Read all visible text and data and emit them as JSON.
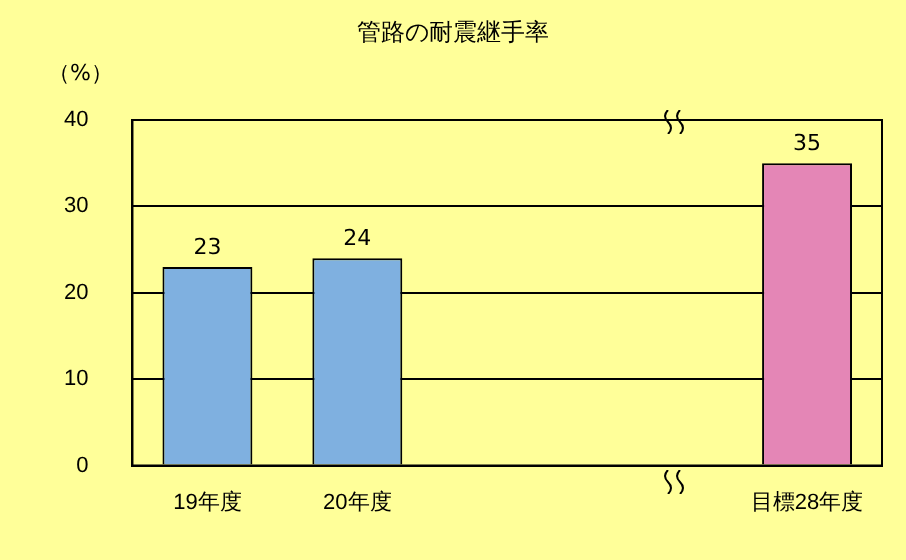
{
  "chart_data": {
    "type": "bar",
    "title": "管路の耐震継手率",
    "ylabel": "（%）",
    "categories": [
      "19年度",
      "20年度",
      null,
      null,
      "目標28年度"
    ],
    "values": [
      23,
      24,
      null,
      null,
      35
    ],
    "colors": [
      "#7fb0e0",
      "#7fb0e0",
      null,
      null,
      "#e486b6"
    ],
    "ylim": [
      0,
      40
    ],
    "yticks": [
      0,
      10,
      20,
      30,
      40
    ],
    "grid": "y",
    "data_labels": true,
    "legend": false
  }
}
